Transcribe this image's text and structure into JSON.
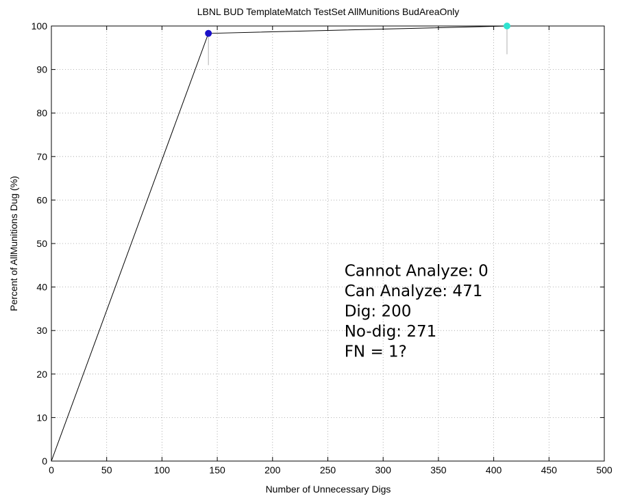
{
  "chart_data": {
    "type": "line",
    "title": "LBNL BUD TemplateMatch TestSet AllMunitions BudAreaOnly",
    "xlabel": "Number of Unnecessary Digs",
    "ylabel": "Percent of AllMunitions Dug (%)",
    "xlim": [
      0,
      500
    ],
    "ylim": [
      0,
      100
    ],
    "xticks": [
      0,
      50,
      100,
      150,
      200,
      250,
      300,
      350,
      400,
      450,
      500
    ],
    "yticks": [
      0,
      10,
      20,
      30,
      40,
      50,
      60,
      70,
      80,
      90,
      100
    ],
    "grid": true,
    "series": [
      {
        "x": [
          0,
          142,
          412
        ],
        "y": [
          0,
          98.3,
          100
        ],
        "color": "#000000"
      }
    ],
    "markers": [
      {
        "x": 142,
        "y": 98.3,
        "color": "#1a10c8",
        "stem_to": 91
      },
      {
        "x": 412,
        "y": 100,
        "color": "#2fe3d0",
        "stem_to": 93.5
      }
    ],
    "annotation_lines": [
      "Cannot Analyze: 0",
      "Can Analyze: 471",
      "Dig: 200",
      "No-dig: 271",
      "FN = 1?"
    ],
    "annotation_anchor": {
      "x": 265,
      "y": 40
    }
  }
}
